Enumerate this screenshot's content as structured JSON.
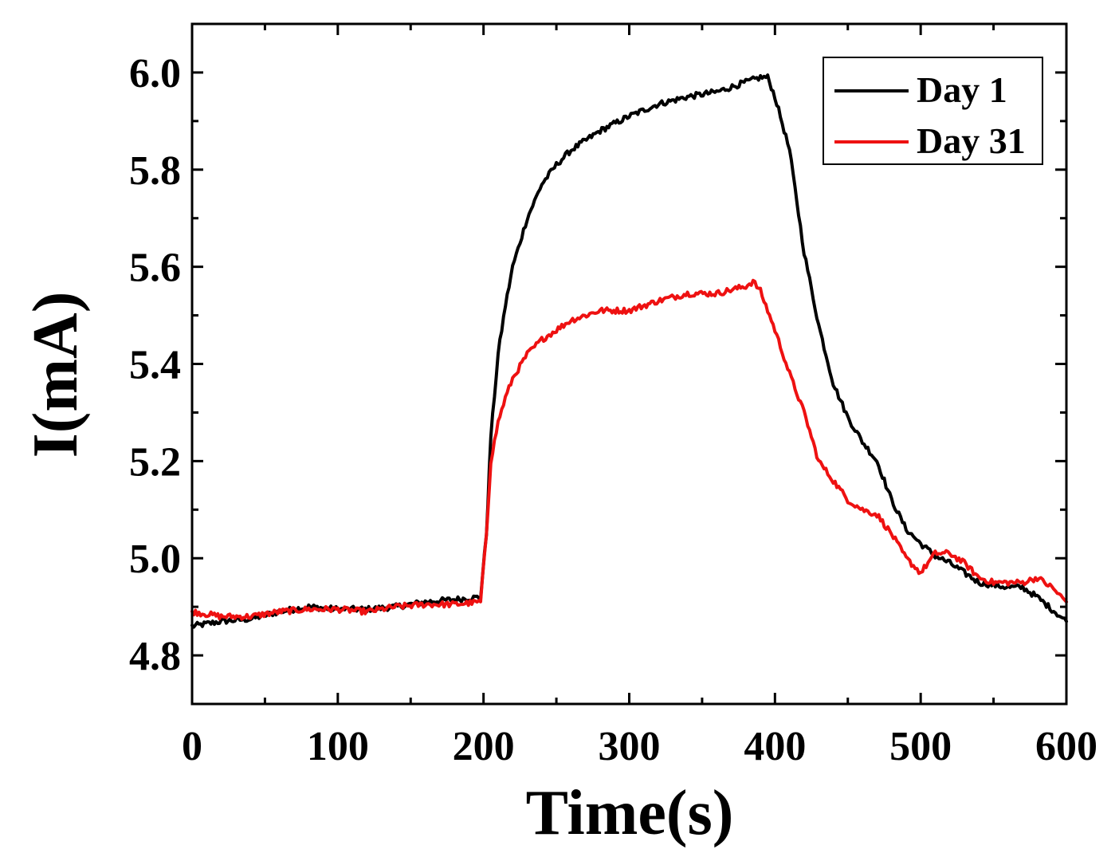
{
  "chart_data": {
    "type": "line",
    "title": "",
    "xlabel": "Time(s)",
    "ylabel": "I(mA)",
    "xlim": [
      0,
      600
    ],
    "ylim": [
      4.7,
      6.1
    ],
    "xticks": [
      0,
      100,
      200,
      300,
      400,
      500,
      600
    ],
    "yticks": [
      4.8,
      5.0,
      5.2,
      5.4,
      5.6,
      5.8,
      6.0
    ],
    "xticks_minor": [
      50,
      150,
      250,
      350,
      450,
      550
    ],
    "yticks_minor": [
      4.9,
      5.1,
      5.3,
      5.5,
      5.7,
      5.9
    ],
    "xtick_labels": [
      "0",
      "100",
      "200",
      "300",
      "400",
      "500",
      "600"
    ],
    "ytick_labels": [
      "4.8",
      "5.0",
      "5.2",
      "5.4",
      "5.6",
      "5.8",
      "6.0"
    ],
    "grid": false,
    "legend_position": "top-right",
    "series": [
      {
        "name": "Day 1",
        "color": "#000000",
        "x": [
          0,
          20,
          40,
          60,
          80,
          100,
          120,
          140,
          160,
          180,
          198,
          202,
          205,
          210,
          215,
          220,
          230,
          240,
          250,
          260,
          280,
          300,
          320,
          340,
          360,
          380,
          390,
          395,
          400,
          410,
          420,
          430,
          440,
          450,
          460,
          470,
          480,
          490,
          500,
          510,
          520,
          530,
          540,
          550,
          560,
          570,
          580,
          590,
          600
        ],
        "y": [
          4.86,
          4.87,
          4.875,
          4.89,
          4.9,
          4.895,
          4.895,
          4.9,
          4.91,
          4.915,
          4.92,
          5.05,
          5.25,
          5.42,
          5.52,
          5.6,
          5.7,
          5.77,
          5.81,
          5.84,
          5.88,
          5.91,
          5.935,
          5.95,
          5.96,
          5.98,
          5.99,
          5.99,
          5.95,
          5.84,
          5.63,
          5.48,
          5.36,
          5.29,
          5.24,
          5.2,
          5.12,
          5.06,
          5.03,
          5.005,
          4.99,
          4.97,
          4.95,
          4.945,
          4.94,
          4.94,
          4.92,
          4.895,
          4.87
        ]
      },
      {
        "name": "Day 31",
        "color": "#ee1111",
        "x": [
          0,
          20,
          40,
          60,
          80,
          100,
          120,
          140,
          160,
          180,
          198,
          202,
          205,
          210,
          215,
          220,
          230,
          240,
          250,
          260,
          280,
          300,
          320,
          340,
          360,
          380,
          385,
          390,
          400,
          410,
          420,
          430,
          440,
          450,
          460,
          470,
          480,
          490,
          500,
          505,
          510,
          520,
          530,
          540,
          550,
          560,
          570,
          580,
          590,
          600
        ],
        "y": [
          4.89,
          4.88,
          4.88,
          4.89,
          4.895,
          4.895,
          4.89,
          4.9,
          4.905,
          4.905,
          4.91,
          5.05,
          5.2,
          5.28,
          5.33,
          5.37,
          5.42,
          5.45,
          5.47,
          5.49,
          5.51,
          5.51,
          5.53,
          5.545,
          5.545,
          5.56,
          5.57,
          5.55,
          5.47,
          5.38,
          5.3,
          5.2,
          5.16,
          5.12,
          5.1,
          5.09,
          5.05,
          5.0,
          4.97,
          4.99,
          5.01,
          5.01,
          4.99,
          4.96,
          4.95,
          4.95,
          4.95,
          4.96,
          4.94,
          4.91
        ]
      }
    ]
  }
}
